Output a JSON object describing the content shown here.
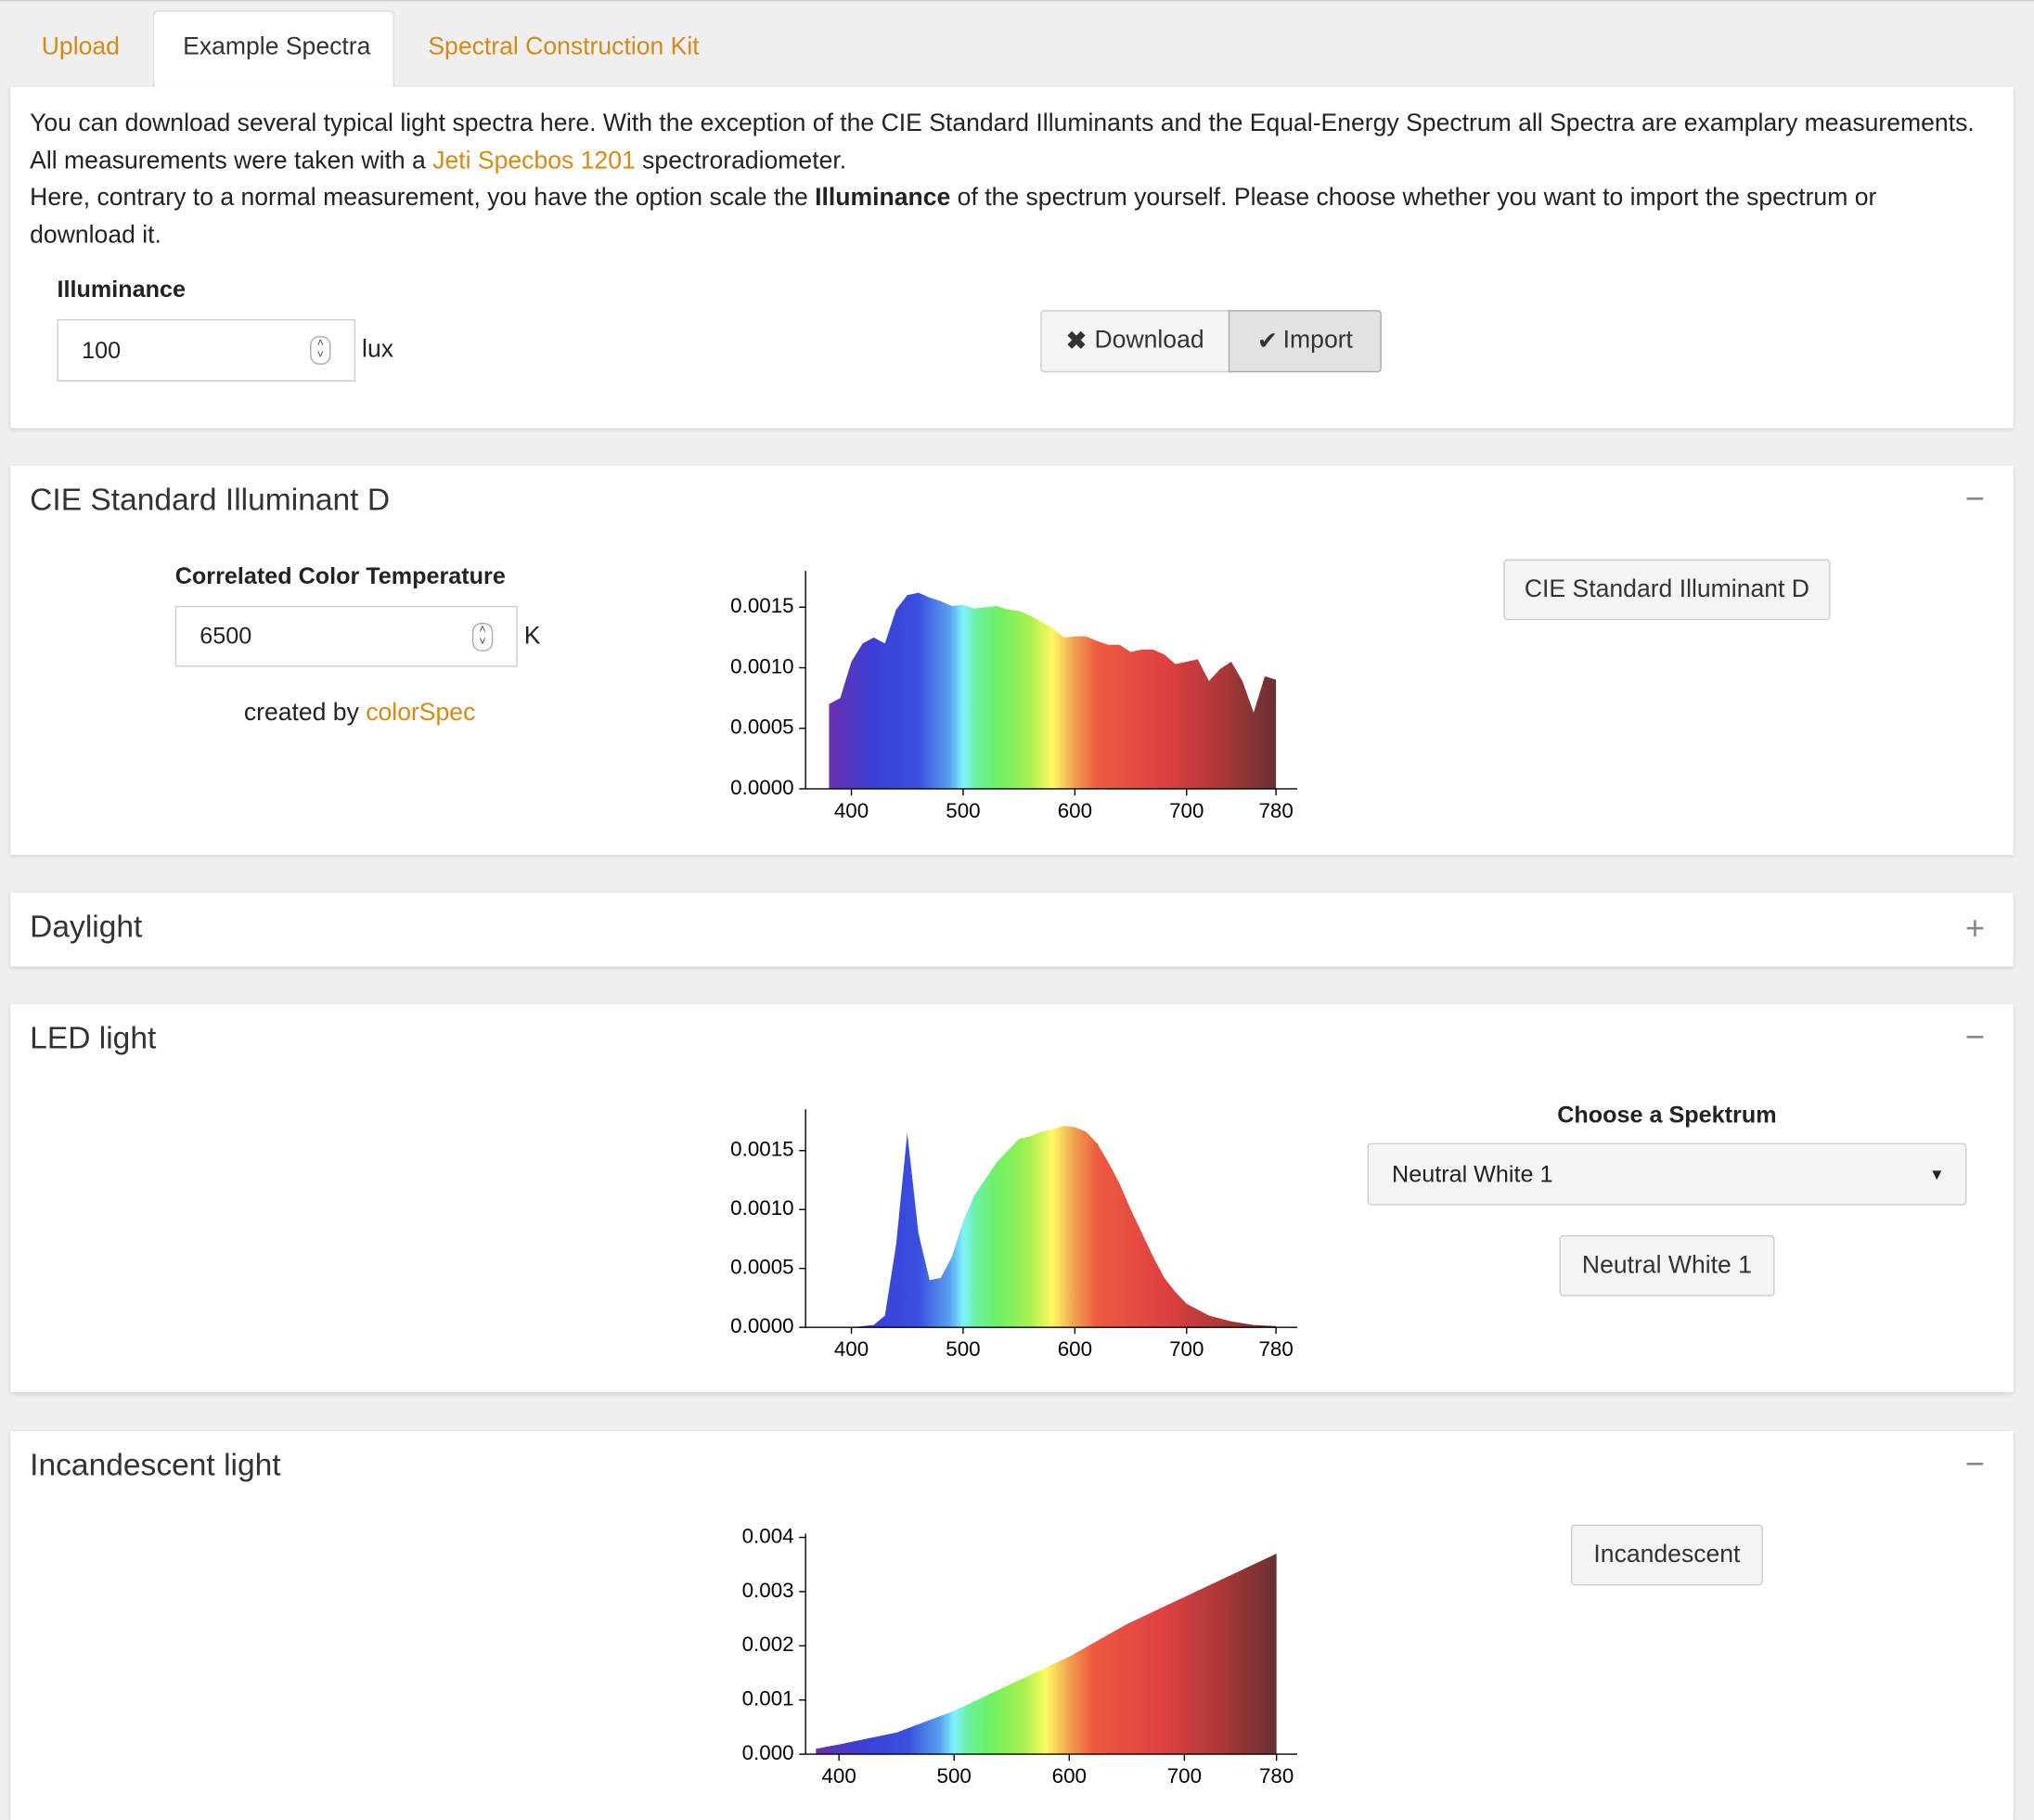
{
  "tabs": [
    "Upload",
    "Example Spectra",
    "Spectral Construction Kit"
  ],
  "intro": {
    "p1": [
      "You can download several typical light spectra here. With the exception of the CIE Standard Illuminants and the Equal-Energy Spectrum all Spectra are examplary measurements. All measurements were taken with a ",
      "Jeti Specbos 1201",
      " spectroradiometer."
    ],
    "p2": [
      "Here, contrary to a normal measurement, you have the option scale the ",
      "Illuminance",
      " of the spectrum yourself. Please choose whether you want to import the spectrum or download it."
    ]
  },
  "illuminance": {
    "label": "Illuminance",
    "value": "100",
    "unit": "lux"
  },
  "buttons": [
    "Download",
    "Import"
  ],
  "panels": [
    {
      "title": "CIE Standard Illuminant D",
      "input_label": "Correlated Color Temperature",
      "input_value": "6500",
      "unit": "K",
      "credit": [
        "created by ",
        "colorSpec"
      ],
      "button": "CIE Standard Illuminant D",
      "chart": {
        "type": "area",
        "x": [
          380,
          390,
          400,
          410,
          420,
          430,
          440,
          450,
          460,
          470,
          480,
          490,
          500,
          510,
          520,
          530,
          540,
          550,
          560,
          570,
          580,
          590,
          600,
          610,
          620,
          630,
          640,
          650,
          660,
          670,
          680,
          690,
          700,
          710,
          720,
          730,
          740,
          750,
          760,
          770,
          780
        ],
        "values": [
          0.0007,
          0.00075,
          0.00105,
          0.0012,
          0.00125,
          0.0012,
          0.00148,
          0.0016,
          0.00162,
          0.00158,
          0.00155,
          0.00151,
          0.00152,
          0.00149,
          0.0015,
          0.00151,
          0.00148,
          0.00147,
          0.00143,
          0.00138,
          0.00133,
          0.00125,
          0.00126,
          0.00126,
          0.00122,
          0.00119,
          0.00119,
          0.00113,
          0.00115,
          0.00115,
          0.00111,
          0.00103,
          0.00105,
          0.00107,
          0.00089,
          0.00099,
          0.00105,
          0.00089,
          0.00063,
          0.00093,
          0.0009
        ],
        "xlim": [
          359,
          799
        ],
        "ylim": [
          0,
          0.0018
        ],
        "xticks": [
          400,
          500,
          600,
          700,
          780
        ],
        "yticks": [
          {
            "value": 0,
            "label": "0.0000"
          },
          0.0005,
          {
            "value": 0.001,
            "label": "0.0010"
          },
          0.0015
        ]
      }
    },
    {
      "title": "Daylight"
    },
    {
      "title": "LED light",
      "select_label": "Choose a Spektrum",
      "select_value": "Neutral White 1",
      "button": "Neutral White 1",
      "chart": {
        "type": "area",
        "x": [
          380,
          400,
          420,
          430,
          440,
          450,
          460,
          470,
          480,
          490,
          500,
          510,
          520,
          530,
          540,
          550,
          560,
          570,
          580,
          590,
          600,
          610,
          620,
          630,
          640,
          650,
          660,
          670,
          680,
          690,
          700,
          720,
          740,
          760,
          780
        ],
        "values": [
          0,
          0,
          2e-05,
          0.0001,
          0.0007,
          0.00165,
          0.0008,
          0.0004,
          0.00042,
          0.0006,
          0.0009,
          0.00112,
          0.00126,
          0.0014,
          0.0015,
          0.0016,
          0.00162,
          0.00166,
          0.00168,
          0.00171,
          0.0017,
          0.00166,
          0.00156,
          0.0014,
          0.00122,
          0.001,
          0.0008,
          0.0006,
          0.00042,
          0.0003,
          0.0002,
          0.0001,
          5e-05,
          2e-05,
          1e-05
        ],
        "xlim": [
          359,
          799
        ],
        "ylim": [
          0,
          0.00185
        ],
        "xticks": [
          400,
          500,
          600,
          700,
          780
        ],
        "yticks": [
          {
            "value": 0,
            "label": "0.0000"
          },
          0.0005,
          {
            "value": 0.001,
            "label": "0.0010"
          },
          0.0015
        ]
      }
    },
    {
      "title": "Incandescent light",
      "button": "Incandescent",
      "chart": {
        "type": "area",
        "x": [
          380,
          400,
          450,
          500,
          550,
          600,
          650,
          700,
          750,
          780
        ],
        "values": [
          0.0001,
          0.00018,
          0.0004,
          0.0008,
          0.0013,
          0.0018,
          0.0024,
          0.0029,
          0.0034,
          0.0037
        ],
        "xlim": [
          371,
          798
        ],
        "ylim": [
          0,
          0.00407
        ],
        "xticks": [
          400,
          500,
          600,
          700,
          780
        ],
        "yticks": [
          {
            "value": 0,
            "label": "0.000"
          },
          0.001,
          0.002,
          0.003,
          0.004
        ]
      }
    }
  ]
}
